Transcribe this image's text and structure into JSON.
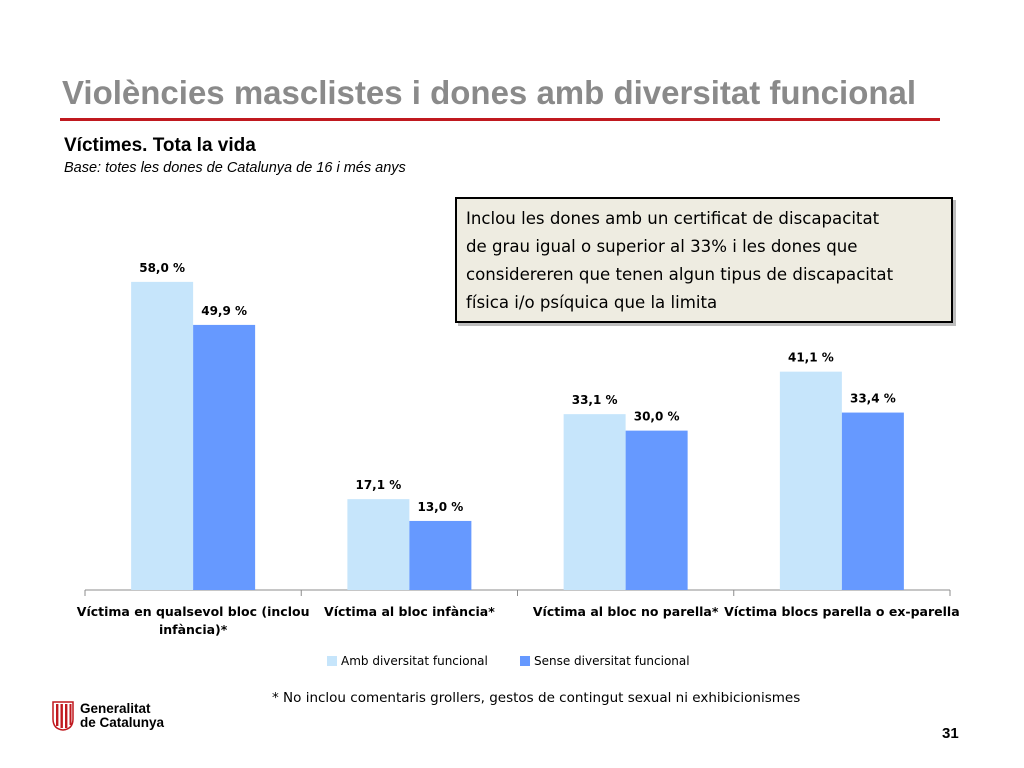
{
  "slide": {
    "title": "Violències masclistes i dones amb diversitat funcional",
    "subtitle": "Víctimes. Tota la vida",
    "base": "Base: totes les dones de Catalunya de 16 i més anys",
    "note_lines": [
      "Inclou les dones amb un certificat de discapacitat",
      "de grau igual o superior al 33% i les dones que",
      "considereren que tenen algun tipus de discapacitat",
      "física i/o psíquica que la limita"
    ],
    "footnote": "* No inclou comentaris grollers, gestos de contingut sexual ni exhibicionismes",
    "logo_line1": "Generalitat",
    "logo_line2": "de Catalunya",
    "page_number": "31",
    "colors": {
      "title": "#8a8a8a",
      "rule": "#c0191f",
      "note_bg": "#eeece1",
      "logo_red": "#c0191f"
    }
  },
  "chart_data": {
    "type": "bar",
    "categories": [
      [
        "Víctima en qualsevol bloc (inclou",
        "infància)*"
      ],
      [
        "Víctima al bloc infància*"
      ],
      [
        "Víctima al bloc no parella*"
      ],
      [
        "Víctima blocs parella o ex-parella"
      ]
    ],
    "series": [
      {
        "name": "Amb diversitat funcional",
        "values": [
          58.0,
          17.1,
          33.1,
          41.1
        ],
        "labels": [
          "58,0 %",
          "17,1 %",
          "33,1 %",
          "41,1 %"
        ],
        "color": "#c6e5fb"
      },
      {
        "name": "Sense diversitat funcional",
        "values": [
          49.9,
          13.0,
          30.0,
          33.4
        ],
        "labels": [
          "49,9 %",
          "13,0 %",
          "30,0 %",
          "33,4 %"
        ],
        "color": "#6699ff"
      }
    ],
    "ylim": [
      0,
      64
    ],
    "grid": false,
    "legend": "bottom"
  }
}
